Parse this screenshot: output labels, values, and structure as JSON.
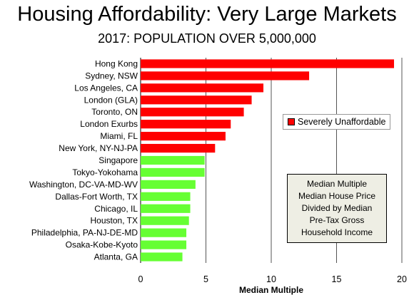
{
  "chart_data": {
    "type": "bar",
    "orientation": "horizontal",
    "title": "Housing Affordability: Very Large Markets",
    "subtitle": "2017: POPULATION OVER 5,000,000",
    "xlabel": "Median Multiple",
    "ylabel": "",
    "xlim": [
      0,
      20
    ],
    "xticks": [
      "0",
      "5",
      "10",
      "15",
      "20"
    ],
    "grid": "vertical-major",
    "categories": [
      "Hong Kong",
      "Sydney, NSW",
      "Los Angeles, CA",
      "London (GLA)",
      "Toronto, ON",
      "London Exurbs",
      "Miami, FL",
      "New York, NY-NJ-PA",
      "Singapore",
      "Tokyo-Yokohama",
      "Washington, DC-VA-MD-WV",
      "Dallas-Fort Worth, TX",
      "Chicago, IL",
      "Houston, TX",
      "Philadelphia, PA-NJ-DE-MD",
      "Osaka-Kobe-Kyoto",
      "Atlanta, GA"
    ],
    "values": [
      19.4,
      12.9,
      9.4,
      8.5,
      7.9,
      6.9,
      6.5,
      5.7,
      4.9,
      4.9,
      4.2,
      3.8,
      3.8,
      3.7,
      3.5,
      3.5,
      3.2
    ],
    "bar_colors": [
      "#ff0000",
      "#ff0000",
      "#ff0000",
      "#ff0000",
      "#ff0000",
      "#ff0000",
      "#ff0000",
      "#ff0000",
      "#66ff33",
      "#66ff33",
      "#66ff33",
      "#66ff33",
      "#66ff33",
      "#66ff33",
      "#66ff33",
      "#66ff33",
      "#66ff33"
    ],
    "legend": {
      "placement": "right",
      "entries": [
        {
          "label": "Severely Unaffordable",
          "color": "#ff0000"
        }
      ]
    },
    "annotation": {
      "lines": [
        "Median Multiple",
        "Median House Price",
        "Divided by Median",
        "Pre-Tax Gross",
        "Household Income"
      ],
      "background": "#eeeee4"
    }
  }
}
